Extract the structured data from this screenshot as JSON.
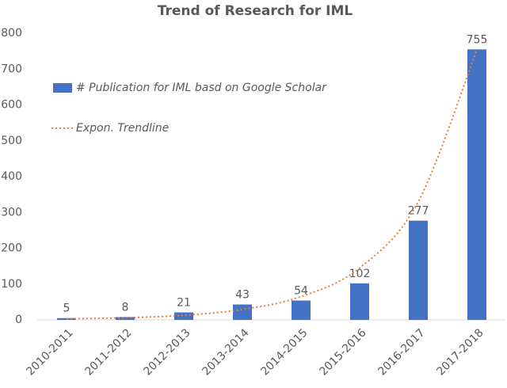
{
  "chart_data": {
    "type": "bar",
    "title": "Trend of Research for IML",
    "categories": [
      "2010-2011",
      "2011-2012",
      "2012-2013",
      "2013-2014",
      "2014-2015",
      "2015-2016",
      "2016-2017",
      "2017-2018"
    ],
    "series": [
      {
        "name": "# Publication for IML basd on Google Scholar",
        "type": "bar",
        "color": "#4472c4",
        "values": [
          5,
          8,
          21,
          43,
          54,
          102,
          277,
          755
        ]
      },
      {
        "name": "Expon. Trendline",
        "type": "line",
        "color": "#ed7d31",
        "dashed": true,
        "values": [
          3,
          6,
          13,
          29,
          65,
          145,
          330,
          755
        ]
      }
    ],
    "data_labels": true,
    "ylim": [
      0,
      800
    ],
    "yticks": [
      0,
      100,
      200,
      300,
      400,
      500,
      600,
      700,
      800
    ],
    "grid": false,
    "legend": "upper-left"
  }
}
